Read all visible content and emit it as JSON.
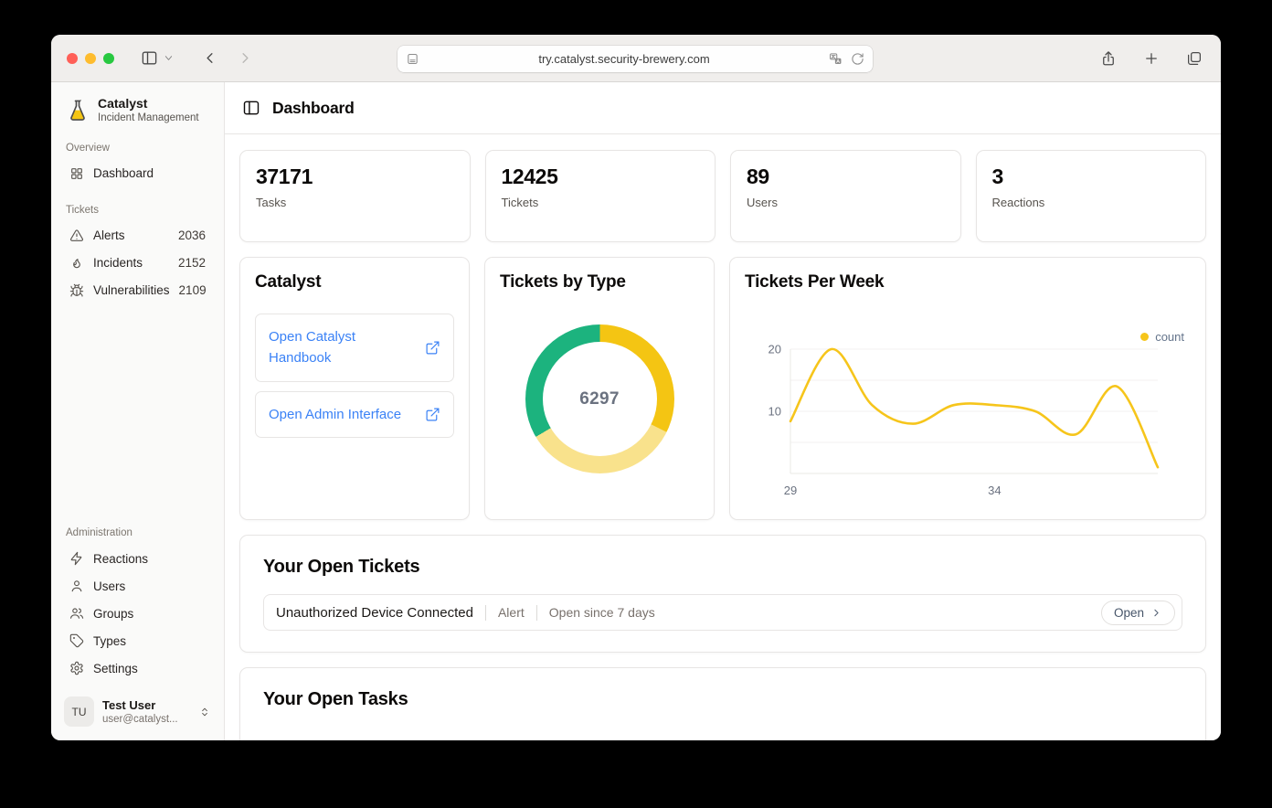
{
  "browser": {
    "url": "try.catalyst.security-brewery.com",
    "traffic_lights": [
      "#ff5f57",
      "#febc2e",
      "#28c840"
    ]
  },
  "app": {
    "name": "Catalyst",
    "subtitle": "Incident Management"
  },
  "sidebar": {
    "sections": [
      {
        "label": "Overview",
        "items": [
          {
            "icon": "dashboard-grid-icon",
            "label": "Dashboard"
          }
        ]
      },
      {
        "label": "Tickets",
        "items": [
          {
            "icon": "alert-triangle-icon",
            "label": "Alerts",
            "count": "2036"
          },
          {
            "icon": "flame-icon",
            "label": "Incidents",
            "count": "2152"
          },
          {
            "icon": "bug-icon",
            "label": "Vulnerabilities",
            "count": "2109"
          }
        ]
      },
      {
        "label": "Administration",
        "items": [
          {
            "icon": "zap-icon",
            "label": "Reactions"
          },
          {
            "icon": "user-icon",
            "label": "Users"
          },
          {
            "icon": "users-icon",
            "label": "Groups"
          },
          {
            "icon": "tag-icon",
            "label": "Types"
          },
          {
            "icon": "gear-icon",
            "label": "Settings"
          }
        ]
      }
    ],
    "user": {
      "initials": "TU",
      "name": "Test User",
      "email": "user@catalyst..."
    }
  },
  "header": {
    "title": "Dashboard"
  },
  "stats": [
    {
      "value": "37171",
      "label": "Tasks"
    },
    {
      "value": "12425",
      "label": "Tickets"
    },
    {
      "value": "89",
      "label": "Users"
    },
    {
      "value": "3",
      "label": "Reactions"
    }
  ],
  "catalyst_card": {
    "title": "Catalyst",
    "links": [
      {
        "label": "Open Catalyst Handbook"
      },
      {
        "label": "Open Admin Interface"
      }
    ]
  },
  "chart_data": [
    {
      "type": "pie",
      "title": "Tickets by Type",
      "donut": true,
      "center_label": "6297",
      "total": 6297,
      "segments": [
        {
          "value": 2036,
          "color": "#f4c513"
        },
        {
          "value": 2152,
          "color": "#f9e28c"
        },
        {
          "value": 2109,
          "color": "#1cb37e"
        }
      ]
    },
    {
      "type": "line",
      "title": "Tickets Per Week",
      "legend": [
        {
          "name": "count",
          "color": "#f6c51b"
        }
      ],
      "x": [
        29,
        30,
        31,
        32,
        33,
        34,
        35,
        36,
        37,
        38
      ],
      "series": [
        {
          "name": "count",
          "values": [
            8.4,
            20,
            11,
            8,
            11,
            11,
            10,
            6.3,
            14,
            1
          ]
        }
      ],
      "ylim": [
        0,
        20
      ],
      "yticks": [
        10,
        20
      ],
      "xticks": [
        29,
        34
      ],
      "grid": true,
      "line_color": "#f6c51b",
      "legend_position": "top-right"
    }
  ],
  "open_tickets": {
    "title": "Your Open Tickets",
    "rows": [
      {
        "name": "Unauthorized Device Connected",
        "type": "Alert",
        "age": "Open since 7 days",
        "action": "Open"
      }
    ]
  },
  "open_tasks": {
    "title": "Your Open Tasks"
  },
  "colors": {
    "accent_blue": "#3b82f6",
    "donut_yellow": "#f4c513",
    "donut_light_yellow": "#f9e28c",
    "donut_green": "#1cb37e",
    "line_yellow": "#f6c51b"
  }
}
